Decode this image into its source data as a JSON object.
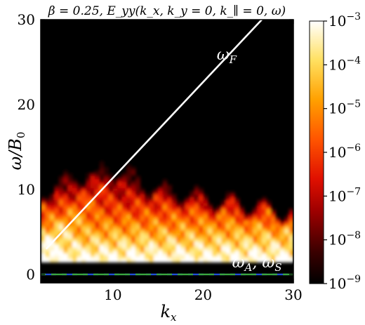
{
  "chart_data": {
    "type": "heatmap",
    "title": "β = 0.25, E_yy(k_x, k_y = 0, k_∥ = 0, ω)",
    "xlabel": "k_x",
    "ylabel": "ω/B_0",
    "xlim": [
      2,
      30
    ],
    "ylim": [
      -1,
      30
    ],
    "x_ticks": [
      10,
      20,
      30
    ],
    "y_ticks": [
      0,
      10,
      20,
      30
    ],
    "colorbar": {
      "scale": "log",
      "range": [
        1e-09,
        0.001
      ],
      "ticks": [
        "10^-9",
        "10^-8",
        "10^-7",
        "10^-6",
        "10^-5",
        "10^-4",
        "10^-3"
      ],
      "colormap": "hot"
    },
    "lines": [
      {
        "name": "ω_F",
        "style": "solid",
        "color": "#ffffff",
        "points": [
          [
            2.6,
            3
          ],
          [
            26.5,
            30
          ]
        ]
      },
      {
        "name": "ω_A, ω_S",
        "style": "dashed",
        "color": "#1f4fd6",
        "points": [
          [
            2,
            0
          ],
          [
            30,
            0
          ]
        ]
      },
      {
        "name": "ω_A, ω_S",
        "style": "dashed",
        "color": "#3aa640",
        "points": [
          [
            2,
            0
          ],
          [
            30,
            0
          ]
        ]
      }
    ],
    "annotations": [
      {
        "text": "ω_F",
        "x": 21.5,
        "y": 25.3,
        "color": "#ffffff"
      },
      {
        "text": "ω_A, ω_S",
        "x": 23.2,
        "y": 0.8,
        "color": "#ffffff"
      }
    ]
  }
}
